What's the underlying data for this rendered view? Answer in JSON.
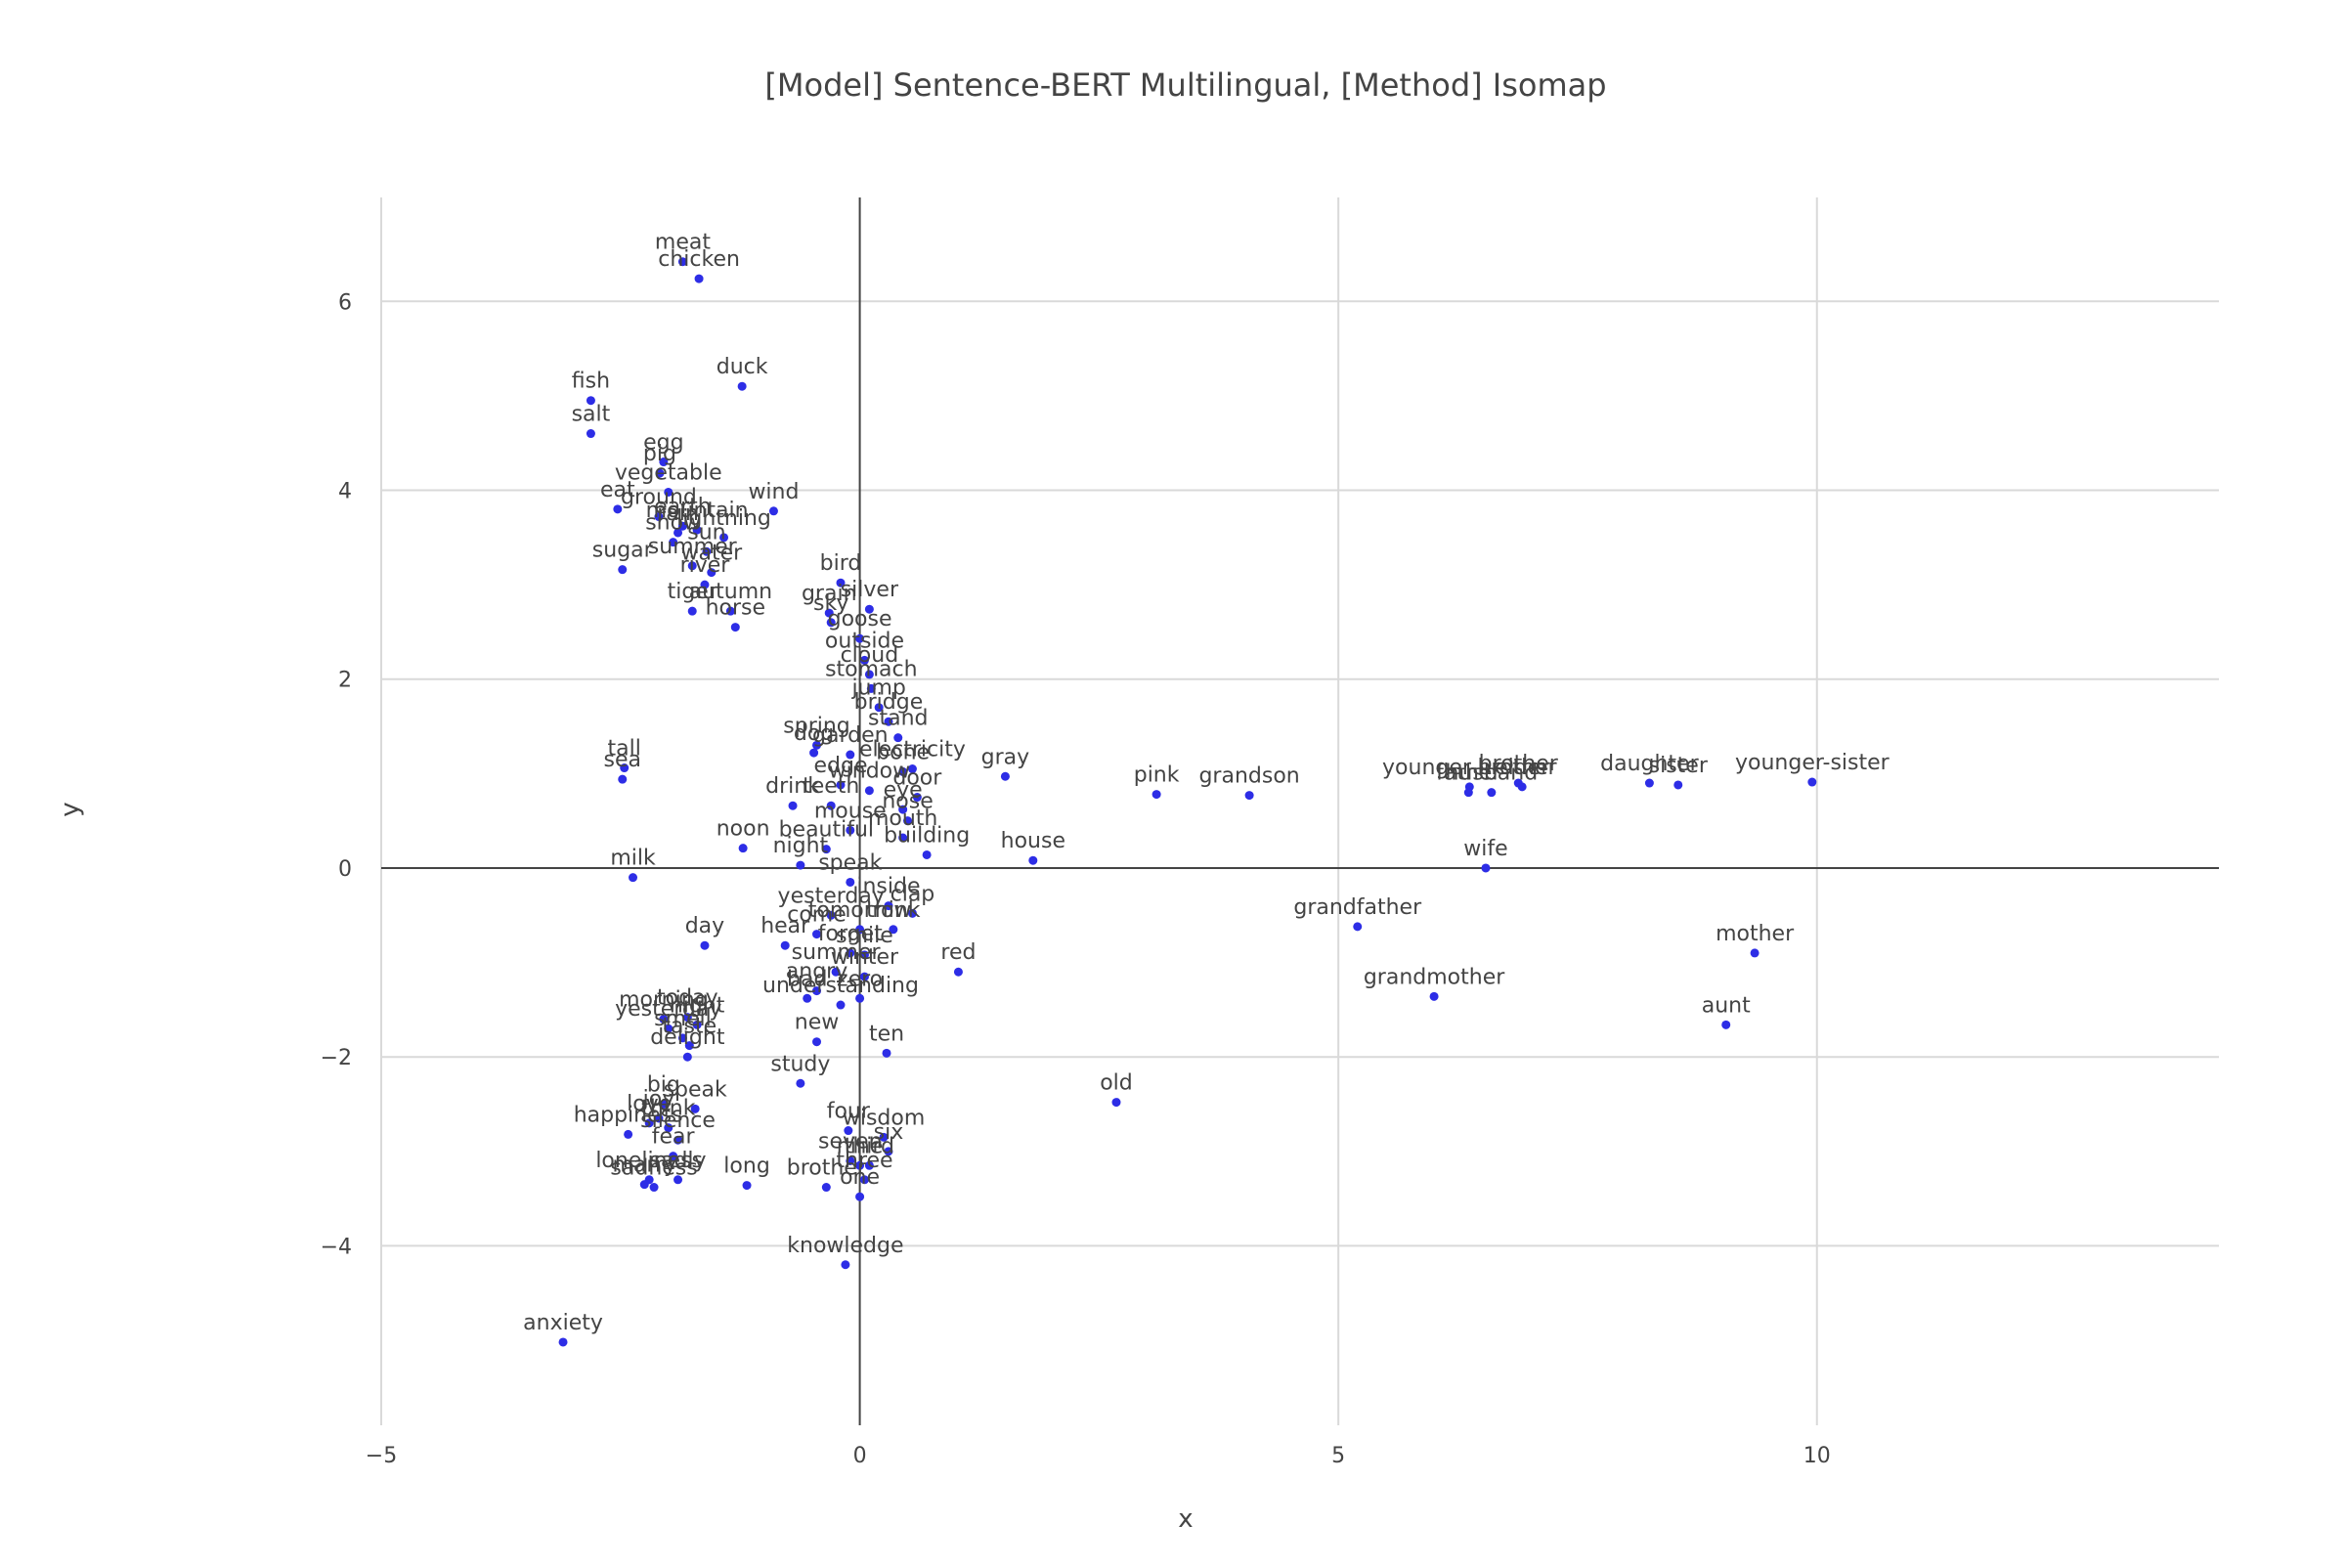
{
  "chart_data": {
    "type": "scatter",
    "title": "[Model] Sentence-BERT Multilingual, [Method] Isomap",
    "xlabel": "x",
    "ylabel": "y",
    "xlim": [
      -5,
      14.2
    ],
    "ylim": [
      -5.9,
      7.1
    ],
    "xticks": [
      -5,
      0,
      5,
      10
    ],
    "yticks": [
      -4,
      -2,
      0,
      2,
      4,
      6
    ],
    "grid": true,
    "zeroline": true,
    "legend": "none",
    "marker_color": "#2d2de6",
    "points": [
      {
        "label": "meat",
        "x": -1.85,
        "y": 6.42
      },
      {
        "label": "chicken",
        "x": -1.68,
        "y": 6.24
      },
      {
        "label": "duck",
        "x": -1.23,
        "y": 5.1
      },
      {
        "label": "fish",
        "x": -2.81,
        "y": 4.95
      },
      {
        "label": "salt",
        "x": -2.81,
        "y": 4.6
      },
      {
        "label": "egg",
        "x": -2.05,
        "y": 4.3
      },
      {
        "label": "pig",
        "x": -2.09,
        "y": 4.18
      },
      {
        "label": "vegetable",
        "x": -2.0,
        "y": 3.98
      },
      {
        "label": "eat",
        "x": -2.53,
        "y": 3.8
      },
      {
        "label": "wind",
        "x": -0.9,
        "y": 3.78
      },
      {
        "label": "ground",
        "x": -2.1,
        "y": 3.72
      },
      {
        "label": "earth",
        "x": -1.85,
        "y": 3.62
      },
      {
        "label": "rain",
        "x": -1.9,
        "y": 3.55
      },
      {
        "label": "mountain",
        "x": -1.7,
        "y": 3.58
      },
      {
        "label": "snow",
        "x": -1.95,
        "y": 3.45
      },
      {
        "label": "lightning",
        "x": -1.42,
        "y": 3.5
      },
      {
        "label": "sun",
        "x": -1.6,
        "y": 3.35
      },
      {
        "label": "sugar",
        "x": -2.48,
        "y": 3.16
      },
      {
        "label": "summer",
        "x": -1.75,
        "y": 3.2
      },
      {
        "label": "water",
        "x": -1.55,
        "y": 3.13
      },
      {
        "label": "river",
        "x": -1.62,
        "y": 3.0
      },
      {
        "label": "bird",
        "x": -0.2,
        "y": 3.02
      },
      {
        "label": "grain",
        "x": -0.32,
        "y": 2.7
      },
      {
        "label": "silver",
        "x": 0.1,
        "y": 2.74
      },
      {
        "label": "tiger",
        "x": -1.75,
        "y": 2.72
      },
      {
        "label": "autumn",
        "x": -1.35,
        "y": 2.72
      },
      {
        "label": "sky",
        "x": -0.3,
        "y": 2.6
      },
      {
        "label": "horse",
        "x": -1.3,
        "y": 2.55
      },
      {
        "label": "goose",
        "x": 0.0,
        "y": 2.43
      },
      {
        "label": "outside",
        "x": 0.05,
        "y": 2.2
      },
      {
        "label": "cloud",
        "x": 0.1,
        "y": 2.05
      },
      {
        "label": "stomach",
        "x": 0.12,
        "y": 1.9
      },
      {
        "label": "jump",
        "x": 0.2,
        "y": 1.7
      },
      {
        "label": "bridge",
        "x": 0.3,
        "y": 1.55
      },
      {
        "label": "stand",
        "x": 0.4,
        "y": 1.38
      },
      {
        "label": "spring",
        "x": -0.45,
        "y": 1.3
      },
      {
        "label": "dog",
        "x": -0.48,
        "y": 1.22
      },
      {
        "label": "garden",
        "x": -0.1,
        "y": 1.2
      },
      {
        "label": "electricity",
        "x": 0.55,
        "y": 1.05
      },
      {
        "label": "bone",
        "x": 0.45,
        "y": 1.02
      },
      {
        "label": "gray",
        "x": 1.52,
        "y": 0.97
      },
      {
        "label": "pink",
        "x": 3.1,
        "y": 0.78
      },
      {
        "label": "grandson",
        "x": 4.07,
        "y": 0.77
      },
      {
        "label": "tall",
        "x": -2.46,
        "y": 1.06
      },
      {
        "label": "sea",
        "x": -2.48,
        "y": 0.94
      },
      {
        "label": "edge",
        "x": -0.2,
        "y": 0.88
      },
      {
        "label": "window",
        "x": 0.1,
        "y": 0.82
      },
      {
        "label": "door",
        "x": 0.6,
        "y": 0.75
      },
      {
        "label": "drink",
        "x": -0.7,
        "y": 0.66
      },
      {
        "label": "teeth",
        "x": -0.3,
        "y": 0.66
      },
      {
        "label": "eye",
        "x": 0.45,
        "y": 0.62
      },
      {
        "label": "nose",
        "x": 0.5,
        "y": 0.5
      },
      {
        "label": "mouse",
        "x": -0.1,
        "y": 0.4
      },
      {
        "label": "mouth",
        "x": 0.45,
        "y": 0.32
      },
      {
        "label": "building",
        "x": 0.7,
        "y": 0.14
      },
      {
        "label": "noon",
        "x": -1.22,
        "y": 0.21
      },
      {
        "label": "beautiful",
        "x": -0.35,
        "y": 0.2
      },
      {
        "label": "house",
        "x": 1.81,
        "y": 0.08
      },
      {
        "label": "night",
        "x": -0.62,
        "y": 0.03
      },
      {
        "label": "milk",
        "x": -2.37,
        "y": -0.1
      },
      {
        "label": "wife",
        "x": 6.54,
        "y": 0.0
      },
      {
        "label": "speak",
        "x": -0.1,
        "y": -0.15
      },
      {
        "label": "inside",
        "x": 0.3,
        "y": -0.4
      },
      {
        "label": "clap",
        "x": 0.55,
        "y": -0.48
      },
      {
        "label": "yesterday",
        "x": -0.3,
        "y": -0.5
      },
      {
        "label": "come",
        "x": -0.45,
        "y": -0.7
      },
      {
        "label": "tomorrow",
        "x": 0.0,
        "y": -0.65
      },
      {
        "label": "think",
        "x": 0.35,
        "y": -0.65
      },
      {
        "label": "day",
        "x": -1.62,
        "y": -0.82
      },
      {
        "label": "hear",
        "x": -0.78,
        "y": -0.82
      },
      {
        "label": "forget",
        "x": -0.1,
        "y": -0.9
      },
      {
        "label": "smile",
        "x": 0.05,
        "y": -0.92
      },
      {
        "label": "red",
        "x": 1.03,
        "y": -1.1
      },
      {
        "label": "summer",
        "x": -0.25,
        "y": -1.1
      },
      {
        "label": "winter",
        "x": 0.05,
        "y": -1.15
      },
      {
        "label": "angry",
        "x": -0.45,
        "y": -1.3
      },
      {
        "label": "bad",
        "x": -0.55,
        "y": -1.38
      },
      {
        "label": "zero",
        "x": 0.0,
        "y": -1.38
      },
      {
        "label": "understanding",
        "x": -0.2,
        "y": -1.45
      },
      {
        "label": "morning",
        "x": -2.05,
        "y": -1.6
      },
      {
        "label": "today",
        "x": -1.8,
        "y": -1.58
      },
      {
        "label": "yesterday",
        "x": -2.0,
        "y": -1.7
      },
      {
        "label": "night",
        "x": -1.7,
        "y": -1.66
      },
      {
        "label": "smell",
        "x": -1.85,
        "y": -1.8
      },
      {
        "label": "taste",
        "x": -1.78,
        "y": -1.88
      },
      {
        "label": "new",
        "x": -0.45,
        "y": -1.84
      },
      {
        "label": "ten",
        "x": 0.28,
        "y": -1.96
      },
      {
        "label": "delight",
        "x": -1.8,
        "y": -2.0
      },
      {
        "label": "study",
        "x": -0.62,
        "y": -2.28
      },
      {
        "label": "old",
        "x": 2.68,
        "y": -2.48
      },
      {
        "label": "big",
        "x": -2.05,
        "y": -2.5
      },
      {
        "label": "speak",
        "x": -1.72,
        "y": -2.55
      },
      {
        "label": "joy",
        "x": -2.1,
        "y": -2.65
      },
      {
        "label": "love",
        "x": -2.2,
        "y": -2.7
      },
      {
        "label": "think",
        "x": -2.0,
        "y": -2.75
      },
      {
        "label": "happiness",
        "x": -2.42,
        "y": -2.82
      },
      {
        "label": "silence",
        "x": -1.9,
        "y": -2.88
      },
      {
        "label": "four",
        "x": -0.12,
        "y": -2.78
      },
      {
        "label": "wisdom",
        "x": 0.25,
        "y": -2.85
      },
      {
        "label": "six",
        "x": 0.3,
        "y": -3.0
      },
      {
        "label": "fear",
        "x": -1.95,
        "y": -3.05
      },
      {
        "label": "seven",
        "x": -0.1,
        "y": -3.1
      },
      {
        "label": "nine",
        "x": 0.0,
        "y": -3.15
      },
      {
        "label": "third",
        "x": 0.1,
        "y": -3.15
      },
      {
        "label": "sadly",
        "x": -1.9,
        "y": -3.3
      },
      {
        "label": "loneliness",
        "x": -2.2,
        "y": -3.3
      },
      {
        "label": "marry",
        "x": -2.25,
        "y": -3.35
      },
      {
        "label": "sadness",
        "x": -2.15,
        "y": -3.38
      },
      {
        "label": "long",
        "x": -1.18,
        "y": -3.36
      },
      {
        "label": "brother",
        "x": -0.35,
        "y": -3.38
      },
      {
        "label": "three",
        "x": 0.05,
        "y": -3.3
      },
      {
        "label": "one",
        "x": 0.0,
        "y": -3.48
      },
      {
        "label": "knowledge",
        "x": -0.15,
        "y": -4.2
      },
      {
        "label": "anxiety",
        "x": -3.1,
        "y": -5.02
      },
      {
        "label": "younger-brother",
        "x": 6.37,
        "y": 0.86
      },
      {
        "label": "father",
        "x": 6.36,
        "y": 0.8
      },
      {
        "label": "husband",
        "x": 6.6,
        "y": 0.8
      },
      {
        "label": "brother",
        "x": 6.88,
        "y": 0.9
      },
      {
        "label": "elder",
        "x": 6.92,
        "y": 0.86
      },
      {
        "label": "grandmother",
        "x": 6.0,
        "y": -1.36
      },
      {
        "label": "grandfather",
        "x": 5.2,
        "y": -0.62
      },
      {
        "label": "daughter",
        "x": 8.25,
        "y": 0.9
      },
      {
        "label": "sister",
        "x": 8.55,
        "y": 0.88
      },
      {
        "label": "younger-sister",
        "x": 9.95,
        "y": 0.91
      },
      {
        "label": "mother",
        "x": 9.35,
        "y": -0.9
      },
      {
        "label": "aunt",
        "x": 9.05,
        "y": -1.66
      }
    ]
  }
}
